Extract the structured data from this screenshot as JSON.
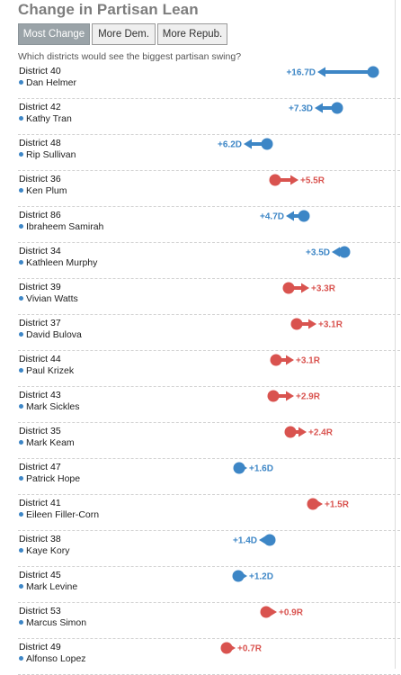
{
  "title": "Change in Partisan Lean",
  "buttons": [
    {
      "label": "Most Change",
      "active": true
    },
    {
      "label": "More Dem.",
      "active": false
    },
    {
      "label": "More Repub.",
      "active": false
    }
  ],
  "question": "Which districts would see the biggest partisan swing?",
  "colors": {
    "dem": "#3d86c6",
    "rep": "#d9534f"
  },
  "rows": [
    {
      "district": "District 40",
      "rep": "Dan Helmer",
      "party": "D",
      "value": 16.7,
      "label": "+16.7D"
    },
    {
      "district": "District 42",
      "rep": "Kathy Tran",
      "party": "D",
      "value": 7.3,
      "label": "+7.3D"
    },
    {
      "district": "District 48",
      "rep": "Rip Sullivan",
      "party": "D",
      "value": 6.2,
      "label": "+6.2D"
    },
    {
      "district": "District 36",
      "rep": "Ken Plum",
      "party": "R",
      "value": 5.5,
      "label": "+5.5R"
    },
    {
      "district": "District 86",
      "rep": "Ibraheem Samirah",
      "party": "D",
      "value": 4.7,
      "label": "+4.7D"
    },
    {
      "district": "District 34",
      "rep": "Kathleen Murphy",
      "party": "D",
      "value": 3.5,
      "label": "+3.5D"
    },
    {
      "district": "District 39",
      "rep": "Vivian Watts",
      "party": "R",
      "value": 3.3,
      "label": "+3.3R"
    },
    {
      "district": "District 37",
      "rep": "David Bulova",
      "party": "R",
      "value": 3.1,
      "label": "+3.1R"
    },
    {
      "district": "District 44",
      "rep": "Paul Krizek",
      "party": "R",
      "value": 3.1,
      "label": "+3.1R"
    },
    {
      "district": "District 43",
      "rep": "Mark Sickles",
      "party": "R",
      "value": 2.9,
      "label": "+2.9R"
    },
    {
      "district": "District 35",
      "rep": "Mark Keam",
      "party": "R",
      "value": 2.4,
      "label": "+2.4R"
    },
    {
      "district": "District 47",
      "rep": "Patrick Hope",
      "party": "D",
      "value": 1.6,
      "label": "+1.6D"
    },
    {
      "district": "District 41",
      "rep": "Eileen Filler-Corn",
      "party": "R",
      "value": 1.5,
      "label": "+1.5R"
    },
    {
      "district": "District 38",
      "rep": "Kaye Kory",
      "party": "D",
      "value": 1.4,
      "label": "+1.4D"
    },
    {
      "district": "District 45",
      "rep": "Mark Levine",
      "party": "D",
      "value": 1.2,
      "label": "+1.2D"
    },
    {
      "district": "District 53",
      "rep": "Marcus Simon",
      "party": "R",
      "value": 0.9,
      "label": "+0.9R"
    },
    {
      "district": "District 49",
      "rep": "Alfonso Lopez",
      "party": "R",
      "value": 0.7,
      "label": "+0.7R"
    }
  ]
}
